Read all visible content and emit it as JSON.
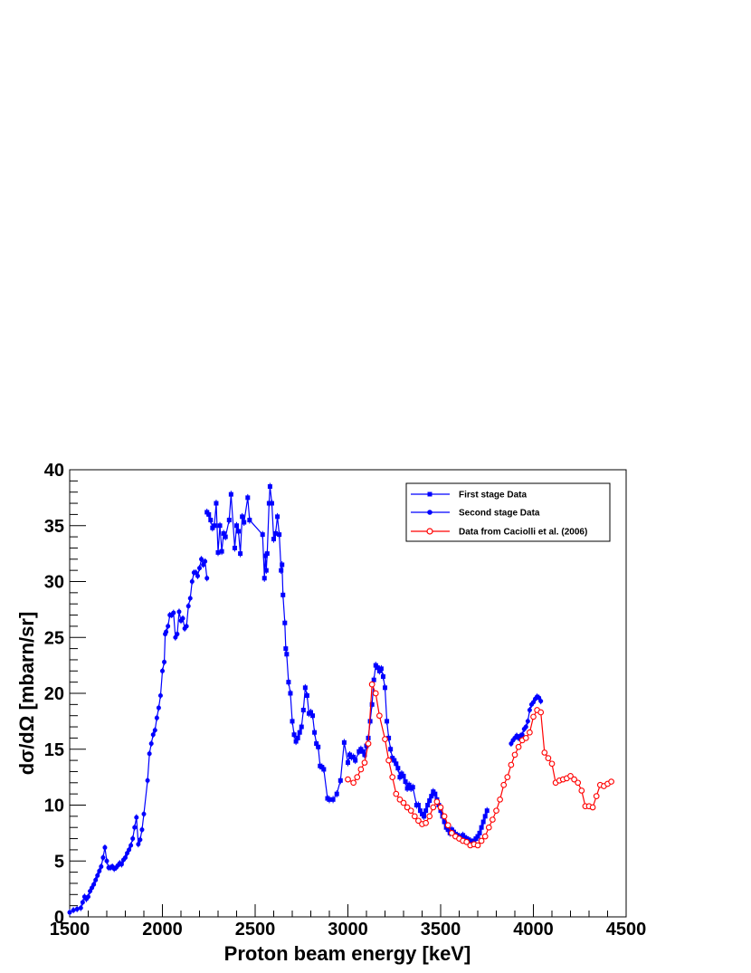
{
  "chart_data": {
    "type": "line",
    "title": "",
    "xlabel": "Proton beam energy [keV]",
    "ylabel": "dσ/dΩ [mbarn/sr]",
    "xlim": [
      1500,
      4500
    ],
    "ylim": [
      0,
      40
    ],
    "x_ticks": [
      1500,
      2000,
      2500,
      3000,
      3500,
      4000,
      4500
    ],
    "y_ticks": [
      0,
      5,
      10,
      15,
      20,
      25,
      30,
      35,
      40
    ],
    "grid": false,
    "legend_position": "top-right",
    "series": [
      {
        "name": "First stage Data",
        "color": "#0000ff",
        "marker": "square-filled",
        "points": [
          [
            2240,
            36.2
          ],
          [
            2250,
            36.0
          ],
          [
            2260,
            35.5
          ],
          [
            2270,
            34.8
          ],
          [
            2280,
            35.0
          ],
          [
            2290,
            37.0
          ],
          [
            2300,
            32.6
          ],
          [
            2310,
            35.0
          ],
          [
            2320,
            32.7
          ],
          [
            2330,
            34.3
          ],
          [
            2340,
            34.0
          ],
          [
            2360,
            35.5
          ],
          [
            2370,
            37.8
          ],
          [
            2390,
            33.0
          ],
          [
            2400,
            35.0
          ],
          [
            2410,
            34.5
          ],
          [
            2420,
            32.5
          ],
          [
            2430,
            35.8
          ],
          [
            2440,
            35.3
          ],
          [
            2460,
            37.5
          ],
          [
            2470,
            35.5
          ],
          [
            2540,
            34.2
          ],
          [
            2550,
            30.3
          ],
          [
            2555,
            32.3
          ],
          [
            2560,
            31.0
          ],
          [
            2565,
            32.5
          ],
          [
            2575,
            37.0
          ],
          [
            2580,
            38.5
          ],
          [
            2590,
            37.0
          ],
          [
            2600,
            33.8
          ],
          [
            2610,
            34.3
          ],
          [
            2620,
            35.8
          ],
          [
            2630,
            34.2
          ],
          [
            2640,
            31.0
          ],
          [
            2645,
            31.5
          ],
          [
            2650,
            28.8
          ],
          [
            2660,
            26.3
          ],
          [
            2665,
            24.0
          ],
          [
            2670,
            23.5
          ],
          [
            2680,
            21.0
          ],
          [
            2690,
            20.0
          ],
          [
            2700,
            17.5
          ],
          [
            2710,
            16.3
          ],
          [
            2720,
            15.7
          ],
          [
            2730,
            16.0
          ],
          [
            2740,
            16.5
          ],
          [
            2750,
            17.0
          ],
          [
            2760,
            18.5
          ],
          [
            2770,
            20.5
          ],
          [
            2780,
            19.8
          ],
          [
            2790,
            18.2
          ],
          [
            2800,
            18.3
          ],
          [
            2810,
            18.0
          ],
          [
            2820,
            16.5
          ],
          [
            2830,
            15.5
          ],
          [
            2840,
            15.2
          ],
          [
            2850,
            13.5
          ],
          [
            2860,
            13.4
          ],
          [
            2870,
            13.2
          ],
          [
            2890,
            10.6
          ],
          [
            2900,
            10.5
          ],
          [
            2920,
            10.5
          ],
          [
            2940,
            11.0
          ],
          [
            2960,
            12.2
          ],
          [
            2980,
            15.6
          ],
          [
            3000,
            13.8
          ],
          [
            3010,
            14.5
          ],
          [
            3020,
            14.3
          ],
          [
            3030,
            14.3
          ],
          [
            3040,
            14.0
          ],
          [
            3060,
            14.8
          ],
          [
            3070,
            15.0
          ],
          [
            3080,
            14.8
          ],
          [
            3090,
            14.5
          ],
          [
            3100,
            15.3
          ],
          [
            3110,
            16.0
          ],
          [
            3120,
            17.5
          ],
          [
            3130,
            19.0
          ],
          [
            3140,
            21.2
          ],
          [
            3150,
            22.5
          ],
          [
            3160,
            22.3
          ],
          [
            3170,
            22.0
          ],
          [
            3180,
            22.2
          ],
          [
            3190,
            21.5
          ],
          [
            3200,
            20.5
          ],
          [
            3210,
            17.5
          ],
          [
            3220,
            16.0
          ],
          [
            3230,
            15.0
          ],
          [
            3240,
            14.2
          ],
          [
            3250,
            14.0
          ],
          [
            3260,
            13.7
          ],
          [
            3270,
            13.3
          ],
          [
            3280,
            12.5
          ],
          [
            3290,
            12.8
          ],
          [
            3300,
            12.6
          ],
          [
            3310,
            12.1
          ],
          [
            3320,
            11.5
          ],
          [
            3330,
            11.8
          ],
          [
            3340,
            11.5
          ],
          [
            3350,
            11.6
          ],
          [
            3370,
            10.0
          ],
          [
            3380,
            10.0
          ],
          [
            3390,
            9.5
          ],
          [
            3400,
            9.2
          ],
          [
            3410,
            9.0
          ],
          [
            3420,
            9.5
          ],
          [
            3430,
            10.0
          ],
          [
            3440,
            10.4
          ],
          [
            3450,
            10.8
          ],
          [
            3460,
            11.2
          ],
          [
            3470,
            11.0
          ],
          [
            3480,
            10.5
          ],
          [
            3490,
            10.0
          ],
          [
            3500,
            9.5
          ],
          [
            3510,
            9.0
          ],
          [
            3520,
            8.5
          ],
          [
            3530,
            8.0
          ],
          [
            3540,
            7.8
          ],
          [
            3550,
            7.5
          ],
          [
            3560,
            7.8
          ],
          [
            3570,
            7.6
          ],
          [
            3580,
            7.4
          ],
          [
            3590,
            7.3
          ],
          [
            3600,
            7.2
          ],
          [
            3610,
            7.0
          ],
          [
            3620,
            7.3
          ],
          [
            3630,
            7.1
          ],
          [
            3640,
            7.0
          ],
          [
            3650,
            6.9
          ],
          [
            3660,
            6.8
          ],
          [
            3670,
            6.7
          ],
          [
            3680,
            6.8
          ],
          [
            3690,
            7.0
          ],
          [
            3700,
            7.2
          ],
          [
            3710,
            7.5
          ],
          [
            3720,
            8.0
          ],
          [
            3730,
            8.5
          ],
          [
            3740,
            9.0
          ],
          [
            3750,
            9.5
          ]
        ]
      },
      {
        "name": "Second stage Data",
        "color": "#0000ff",
        "marker": "circle-filled",
        "points": [
          [
            1500,
            0.4
          ],
          [
            1520,
            0.6
          ],
          [
            1540,
            0.7
          ],
          [
            1560,
            0.8
          ],
          [
            1570,
            1.3
          ],
          [
            1580,
            1.8
          ],
          [
            1590,
            1.6
          ],
          [
            1600,
            1.8
          ],
          [
            1610,
            2.3
          ],
          [
            1620,
            2.6
          ],
          [
            1630,
            2.9
          ],
          [
            1640,
            3.3
          ],
          [
            1650,
            3.7
          ],
          [
            1660,
            4.1
          ],
          [
            1670,
            4.5
          ],
          [
            1680,
            5.3
          ],
          [
            1690,
            6.2
          ],
          [
            1700,
            5.0
          ],
          [
            1710,
            4.4
          ],
          [
            1720,
            4.4
          ],
          [
            1730,
            4.5
          ],
          [
            1740,
            4.3
          ],
          [
            1750,
            4.4
          ],
          [
            1760,
            4.6
          ],
          [
            1770,
            4.8
          ],
          [
            1780,
            4.7
          ],
          [
            1790,
            5.1
          ],
          [
            1800,
            5.3
          ],
          [
            1810,
            5.7
          ],
          [
            1820,
            6.0
          ],
          [
            1830,
            6.4
          ],
          [
            1840,
            7.0
          ],
          [
            1850,
            8.0
          ],
          [
            1860,
            8.9
          ],
          [
            1870,
            6.5
          ],
          [
            1880,
            6.9
          ],
          [
            1890,
            7.8
          ],
          [
            1900,
            9.2
          ],
          [
            1920,
            12.2
          ],
          [
            1930,
            14.6
          ],
          [
            1940,
            15.5
          ],
          [
            1950,
            16.3
          ],
          [
            1960,
            16.7
          ],
          [
            1970,
            17.8
          ],
          [
            1980,
            18.7
          ],
          [
            1990,
            19.8
          ],
          [
            2000,
            22.0
          ],
          [
            2010,
            22.8
          ],
          [
            2015,
            25.3
          ],
          [
            2020,
            25.5
          ],
          [
            2030,
            26.0
          ],
          [
            2040,
            27.0
          ],
          [
            2050,
            27.0
          ],
          [
            2060,
            27.2
          ],
          [
            2070,
            25.0
          ],
          [
            2080,
            25.3
          ],
          [
            2090,
            27.3
          ],
          [
            2100,
            26.5
          ],
          [
            2110,
            26.7
          ],
          [
            2120,
            25.8
          ],
          [
            2130,
            26.0
          ],
          [
            2140,
            27.8
          ],
          [
            2150,
            28.5
          ],
          [
            2160,
            30.0
          ],
          [
            2170,
            30.8
          ],
          [
            2180,
            30.8
          ],
          [
            2190,
            30.5
          ],
          [
            2200,
            31.2
          ],
          [
            2210,
            32.0
          ],
          [
            2220,
            31.5
          ],
          [
            2230,
            31.8
          ],
          [
            2240,
            30.3
          ],
          [
            3880,
            15.5
          ],
          [
            3890,
            15.8
          ],
          [
            3900,
            16.0
          ],
          [
            3910,
            16.2
          ],
          [
            3920,
            16.0
          ],
          [
            3930,
            16.2
          ],
          [
            3940,
            16.3
          ],
          [
            3950,
            16.8
          ],
          [
            3960,
            17.0
          ],
          [
            3970,
            17.5
          ],
          [
            3980,
            18.5
          ],
          [
            3990,
            19.0
          ],
          [
            4000,
            19.2
          ],
          [
            4010,
            19.5
          ],
          [
            4020,
            19.7
          ],
          [
            4030,
            19.6
          ],
          [
            4040,
            19.3
          ]
        ]
      },
      {
        "name": "Data from Caciolli et al. (2006)",
        "color": "#ff0000",
        "marker": "circle-open",
        "points": [
          [
            3000,
            12.3
          ],
          [
            3030,
            12.0
          ],
          [
            3050,
            12.5
          ],
          [
            3070,
            13.2
          ],
          [
            3090,
            13.8
          ],
          [
            3110,
            15.5
          ],
          [
            3130,
            20.8
          ],
          [
            3150,
            20.0
          ],
          [
            3170,
            18.0
          ],
          [
            3200,
            15.9
          ],
          [
            3220,
            14.0
          ],
          [
            3240,
            12.5
          ],
          [
            3260,
            11.0
          ],
          [
            3280,
            10.5
          ],
          [
            3300,
            10.2
          ],
          [
            3320,
            9.8
          ],
          [
            3340,
            9.5
          ],
          [
            3360,
            9.0
          ],
          [
            3380,
            8.6
          ],
          [
            3400,
            8.3
          ],
          [
            3420,
            8.4
          ],
          [
            3440,
            9.0
          ],
          [
            3460,
            9.8
          ],
          [
            3480,
            10.3
          ],
          [
            3500,
            9.8
          ],
          [
            3520,
            9.0
          ],
          [
            3540,
            8.2
          ],
          [
            3560,
            7.5
          ],
          [
            3580,
            7.2
          ],
          [
            3600,
            7.0
          ],
          [
            3620,
            6.8
          ],
          [
            3640,
            6.7
          ],
          [
            3660,
            6.4
          ],
          [
            3680,
            6.5
          ],
          [
            3700,
            6.4
          ],
          [
            3720,
            6.8
          ],
          [
            3740,
            7.2
          ],
          [
            3760,
            8.0
          ],
          [
            3780,
            8.7
          ],
          [
            3800,
            9.5
          ],
          [
            3820,
            10.5
          ],
          [
            3840,
            11.8
          ],
          [
            3860,
            12.5
          ],
          [
            3880,
            13.6
          ],
          [
            3900,
            14.5
          ],
          [
            3920,
            15.2
          ],
          [
            3940,
            15.8
          ],
          [
            3960,
            16.0
          ],
          [
            3980,
            16.5
          ],
          [
            4000,
            17.9
          ],
          [
            4020,
            18.5
          ],
          [
            4040,
            18.3
          ],
          [
            4060,
            14.7
          ],
          [
            4080,
            14.2
          ],
          [
            4100,
            13.7
          ],
          [
            4120,
            12.0
          ],
          [
            4140,
            12.2
          ],
          [
            4160,
            12.3
          ],
          [
            4180,
            12.4
          ],
          [
            4200,
            12.6
          ],
          [
            4220,
            12.3
          ],
          [
            4240,
            12.0
          ],
          [
            4260,
            11.3
          ],
          [
            4280,
            9.9
          ],
          [
            4300,
            9.9
          ],
          [
            4320,
            9.8
          ],
          [
            4340,
            10.8
          ],
          [
            4360,
            11.8
          ],
          [
            4380,
            11.7
          ],
          [
            4400,
            11.9
          ],
          [
            4420,
            12.1
          ]
        ]
      }
    ]
  }
}
